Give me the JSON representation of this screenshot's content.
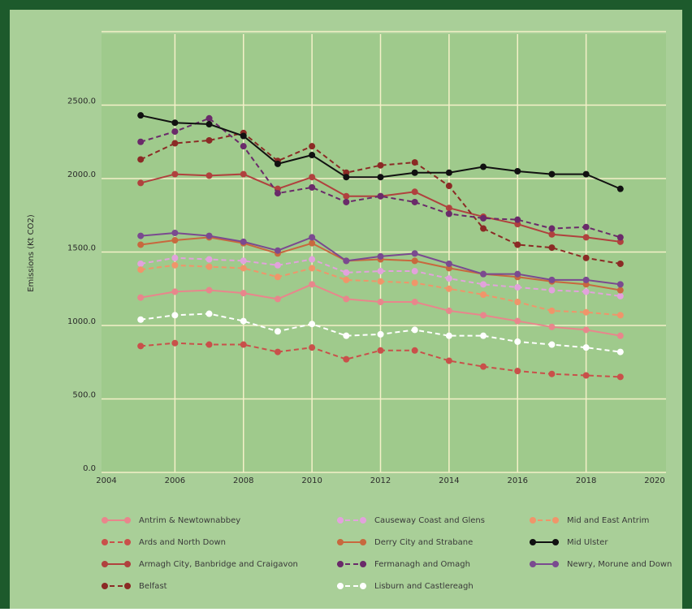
{
  "chart_data": {
    "type": "line",
    "y_label": "Emissions (Kt CO2)",
    "x": [
      2005,
      2006,
      2007,
      2008,
      2009,
      2010,
      2011,
      2012,
      2013,
      2014,
      2015,
      2016,
      2017,
      2018,
      2019
    ],
    "xlim": [
      2004,
      2020
    ],
    "xticks": [
      2004,
      2006,
      2008,
      2010,
      2012,
      2014,
      2016,
      2018,
      2020
    ],
    "ylim": [
      0,
      3000
    ],
    "yticks": [
      {
        "value": 0,
        "label": "0.0"
      },
      {
        "value": 500,
        "label": "500.0"
      },
      {
        "value": 1000,
        "label": "1000.0"
      },
      {
        "value": 1500,
        "label": "1500.0"
      },
      {
        "value": 2000,
        "label": "2000.0"
      },
      {
        "value": 2500,
        "label": "2500.0"
      }
    ],
    "grid": true,
    "series": [
      {
        "name": "Antrim & Newtownabbey",
        "color": "#e8868c",
        "style": "solid",
        "values": [
          1190,
          1230,
          1240,
          1220,
          1180,
          1280,
          1180,
          1160,
          1160,
          1100,
          1070,
          1030,
          990,
          970,
          930
        ]
      },
      {
        "name": "Ards and North Down",
        "color": "#c9504a",
        "style": "dashed",
        "values": [
          860,
          880,
          870,
          870,
          820,
          850,
          770,
          830,
          830,
          760,
          720,
          690,
          670,
          660,
          650
        ]
      },
      {
        "name": "Armagh City, Banbridge and Craigavon",
        "color": "#b0413e",
        "style": "solid",
        "values": [
          1970,
          2030,
          2020,
          2030,
          1930,
          2010,
          1880,
          1880,
          1910,
          1800,
          1740,
          1690,
          1620,
          1600,
          1570
        ]
      },
      {
        "name": "Belfast",
        "color": "#8b2a25",
        "style": "dashed",
        "values": [
          2130,
          2240,
          2260,
          2310,
          2120,
          2220,
          2040,
          2090,
          2110,
          1950,
          1660,
          1550,
          1530,
          1460,
          1420
        ]
      },
      {
        "name": "Causeway Coast and Glens",
        "color": "#e2a2dc",
        "style": "dashed",
        "values": [
          1420,
          1460,
          1450,
          1440,
          1410,
          1450,
          1360,
          1370,
          1370,
          1320,
          1280,
          1260,
          1240,
          1230,
          1200
        ]
      },
      {
        "name": "Derry City and Strabane",
        "color": "#c8683e",
        "style": "solid",
        "values": [
          1550,
          1580,
          1600,
          1560,
          1490,
          1560,
          1440,
          1450,
          1440,
          1390,
          1350,
          1330,
          1300,
          1280,
          1240
        ]
      },
      {
        "name": "Fermanagh and Omagh",
        "color": "#6a2a6a",
        "style": "dashed",
        "values": [
          2250,
          2320,
          2410,
          2220,
          1900,
          1940,
          1840,
          1880,
          1840,
          1760,
          1730,
          1720,
          1660,
          1670,
          1600
        ]
      },
      {
        "name": "Lisburn and Castlereagh",
        "color": "#ffffff",
        "style": "dashed",
        "values": [
          1040,
          1070,
          1080,
          1030,
          960,
          1010,
          930,
          940,
          970,
          930,
          930,
          890,
          870,
          850,
          820
        ]
      },
      {
        "name": "Mid and East Antrim",
        "color": "#f0956a",
        "style": "dashed",
        "values": [
          1380,
          1410,
          1400,
          1390,
          1330,
          1390,
          1310,
          1300,
          1290,
          1250,
          1210,
          1160,
          1100,
          1090,
          1070
        ]
      },
      {
        "name": "Mid Ulster",
        "color": "#111111",
        "style": "solid",
        "values": [
          2430,
          2380,
          2370,
          2290,
          2100,
          2160,
          2010,
          2010,
          2040,
          2040,
          2080,
          2050,
          2030,
          2030,
          1930
        ]
      },
      {
        "name": "Newry, Morune and Down",
        "color": "#7a4a90",
        "style": "solid",
        "values": [
          1610,
          1630,
          1610,
          1570,
          1510,
          1600,
          1440,
          1470,
          1490,
          1420,
          1350,
          1350,
          1310,
          1310,
          1280
        ]
      }
    ]
  }
}
